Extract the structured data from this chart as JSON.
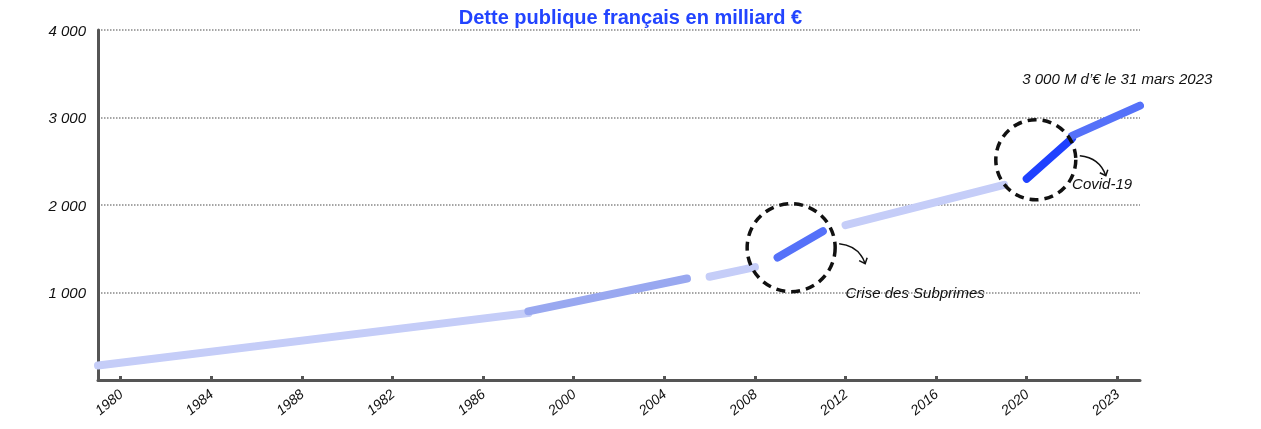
{
  "chart_data": {
    "type": "line",
    "title": "Dette publique français en milliard €",
    "categories": [
      null,
      "1980",
      null,
      null,
      null,
      "1984",
      null,
      null,
      null,
      "1988",
      null,
      null,
      null,
      "1982",
      null,
      null,
      null,
      "1986",
      null,
      null,
      null,
      "2000",
      null,
      null,
      null,
      "2004",
      null,
      null,
      null,
      "2008",
      null,
      null,
      null,
      "2012",
      null,
      null,
      null,
      "2016",
      null,
      null,
      null,
      "2020",
      null,
      null,
      null,
      "2023",
      null
    ],
    "series": [
      {
        "color": "#c5cdf8",
        "values": [
          165,
          null,
          null,
          null,
          null,
          null,
          null,
          null,
          null,
          null,
          null,
          null,
          null,
          null,
          null,
          null,
          null,
          null,
          null,
          765,
          null,
          null,
          null,
          null,
          null,
          null,
          null,
          null,
          null,
          null,
          null,
          null,
          null,
          null,
          null,
          null,
          null,
          null,
          null,
          null,
          null,
          null,
          null,
          null,
          null,
          null,
          null
        ]
      },
      {
        "color": "#99a8f0",
        "values": [
          null,
          null,
          null,
          null,
          null,
          null,
          null,
          null,
          null,
          null,
          null,
          null,
          null,
          null,
          null,
          null,
          null,
          null,
          null,
          785,
          null,
          null,
          null,
          null,
          null,
          null,
          1160,
          null,
          null,
          null,
          null,
          null,
          null,
          null,
          null,
          null,
          null,
          null,
          null,
          null,
          null,
          null,
          null,
          null,
          null,
          null,
          null
        ]
      },
      {
        "color": "#c5cdf8",
        "values": [
          null,
          null,
          null,
          null,
          null,
          null,
          null,
          null,
          null,
          null,
          null,
          null,
          null,
          null,
          null,
          null,
          null,
          null,
          null,
          null,
          null,
          null,
          null,
          null,
          null,
          null,
          null,
          1180,
          null,
          1290,
          null,
          null,
          null,
          null,
          null,
          null,
          null,
          null,
          null,
          null,
          null,
          null,
          null,
          null,
          null,
          null,
          null
        ]
      },
      {
        "color": "#5571f9",
        "values": [
          null,
          null,
          null,
          null,
          null,
          null,
          null,
          null,
          null,
          null,
          null,
          null,
          null,
          null,
          null,
          null,
          null,
          null,
          null,
          null,
          null,
          null,
          null,
          null,
          null,
          null,
          null,
          null,
          null,
          null,
          1400,
          null,
          1700,
          null,
          null,
          null,
          null,
          null,
          null,
          null,
          null,
          null,
          null,
          null,
          null,
          null,
          null
        ]
      },
      {
        "color": "#c5cdf8",
        "values": [
          null,
          null,
          null,
          null,
          null,
          null,
          null,
          null,
          null,
          null,
          null,
          null,
          null,
          null,
          null,
          null,
          null,
          null,
          null,
          null,
          null,
          null,
          null,
          null,
          null,
          null,
          null,
          null,
          null,
          null,
          null,
          null,
          null,
          1770,
          null,
          null,
          null,
          null,
          null,
          null,
          2230,
          null,
          null,
          null,
          null,
          null,
          null
        ]
      },
      {
        "color": "#1f41ff",
        "values": [
          null,
          null,
          null,
          null,
          null,
          null,
          null,
          null,
          null,
          null,
          null,
          null,
          null,
          null,
          null,
          null,
          null,
          null,
          null,
          null,
          null,
          null,
          null,
          null,
          null,
          null,
          null,
          null,
          null,
          null,
          null,
          null,
          null,
          null,
          null,
          null,
          null,
          null,
          null,
          null,
          null,
          2300,
          null,
          2760,
          null,
          null,
          null
        ]
      },
      {
        "color": "#5571f9",
        "values": [
          null,
          null,
          null,
          null,
          null,
          null,
          null,
          null,
          null,
          null,
          null,
          null,
          null,
          null,
          null,
          null,
          null,
          null,
          null,
          null,
          null,
          null,
          null,
          null,
          null,
          null,
          null,
          null,
          null,
          null,
          null,
          null,
          null,
          null,
          null,
          null,
          null,
          null,
          null,
          null,
          null,
          null,
          null,
          2790,
          null,
          null,
          3135
        ]
      }
    ],
    "ylim": [
      0,
      4000
    ],
    "yticks": [
      {
        "value": 1000,
        "label": "1 000"
      },
      {
        "value": 2000,
        "label": "2 000"
      },
      {
        "value": 3000,
        "label": "3 000"
      },
      {
        "value": 4000,
        "label": "4 000"
      }
    ],
    "grid": "y",
    "marker": "none",
    "line_style": "solid",
    "annotations": [
      "Crise des Subprimes",
      "Covid-19",
      "3 000 M d’€ le 31 mars 2023"
    ]
  }
}
